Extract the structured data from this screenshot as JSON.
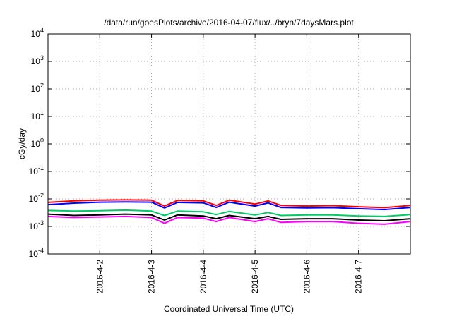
{
  "chart_data": {
    "type": "line",
    "title": "/data/run/goesPlots/archive/2016-04-07/flux/../bryn/7daysMars.plot",
    "xlabel": "Coordinated Universal Time (UTC)",
    "ylabel": "cGy/day",
    "yscale": "log",
    "ylim": [
      0.0001,
      10000
    ],
    "y_ticks": [
      {
        "base": "10",
        "exp": "-4"
      },
      {
        "base": "10",
        "exp": "-3"
      },
      {
        "base": "10",
        "exp": "-2"
      },
      {
        "base": "10",
        "exp": "-1"
      },
      {
        "base": "10",
        "exp": "0"
      },
      {
        "base": "10",
        "exp": "1"
      },
      {
        "base": "10",
        "exp": "2"
      },
      {
        "base": "10",
        "exp": "3"
      },
      {
        "base": "10",
        "exp": "4"
      }
    ],
    "xlim": [
      "2016-04-01T00:00",
      "2016-04-08T00:00"
    ],
    "x_ticks": [
      "2016-4-2",
      "2016-4-3",
      "2016-4-4",
      "2016-4-5",
      "2016-4-6",
      "2016-4-7"
    ],
    "grid": true,
    "x": [
      "2016-04-01T00:00",
      "2016-04-01T12:00",
      "2016-04-02T00:00",
      "2016-04-02T12:00",
      "2016-04-03T00:00",
      "2016-04-03T06:00",
      "2016-04-03T12:00",
      "2016-04-04T00:00",
      "2016-04-04T06:00",
      "2016-04-04T12:00",
      "2016-04-05T00:00",
      "2016-04-05T06:00",
      "2016-04-05T12:00",
      "2016-04-06T00:00",
      "2016-04-06T12:00",
      "2016-04-07T00:00",
      "2016-04-07T12:00",
      "2016-04-08T00:00"
    ],
    "series": [
      {
        "color": "#ff0000",
        "values": [
          0.0075,
          0.0085,
          0.009,
          0.0092,
          0.009,
          0.0055,
          0.0088,
          0.0085,
          0.0058,
          0.009,
          0.0065,
          0.0085,
          0.0058,
          0.0055,
          0.0057,
          0.0052,
          0.0048,
          0.0058
        ]
      },
      {
        "color": "#0000ff",
        "values": [
          0.0062,
          0.007,
          0.0076,
          0.0078,
          0.0076,
          0.0047,
          0.0075,
          0.0072,
          0.0049,
          0.0076,
          0.0055,
          0.0072,
          0.0049,
          0.0047,
          0.0048,
          0.0044,
          0.0041,
          0.0049
        ]
      },
      {
        "color": "#00cc66",
        "values": [
          0.0038,
          0.0036,
          0.0037,
          0.0039,
          0.0036,
          0.0025,
          0.0036,
          0.0034,
          0.0027,
          0.0035,
          0.0026,
          0.0032,
          0.0025,
          0.0026,
          0.0026,
          0.0024,
          0.0023,
          0.0027
        ]
      },
      {
        "color": "#000000",
        "values": [
          0.0028,
          0.0025,
          0.0026,
          0.0028,
          0.0026,
          0.0017,
          0.0026,
          0.0024,
          0.0019,
          0.0025,
          0.0019,
          0.0023,
          0.0018,
          0.0019,
          0.0019,
          0.0017,
          0.0016,
          0.0019
        ]
      },
      {
        "color": "#ff00ff",
        "values": [
          0.0023,
          0.0021,
          0.0022,
          0.0023,
          0.0021,
          0.0013,
          0.0021,
          0.002,
          0.0015,
          0.0021,
          0.0015,
          0.0019,
          0.0014,
          0.0015,
          0.0015,
          0.0013,
          0.0012,
          0.0015
        ]
      }
    ]
  }
}
